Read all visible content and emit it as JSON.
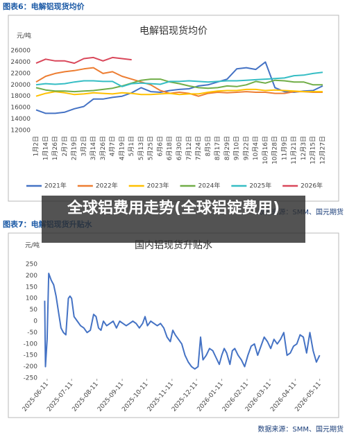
{
  "chart_data": [
    {
      "type": "line",
      "caption": "图表6：电解铝现货均价",
      "title": "电解铝现货均价",
      "y_unit": "元/吨",
      "source": "数据来源：SMM、国元期货",
      "categories": [
        "1月2日",
        "1月14日",
        "1月26日",
        "2月7日",
        "2月19日",
        "3月2日",
        "3月14日",
        "3月26日",
        "4月7日",
        "4月19日",
        "5月1日",
        "5月13日",
        "5月25日",
        "6月6日",
        "6月18日",
        "6月30日",
        "7月12日",
        "7月24日",
        "8月5日",
        "8月17日",
        "8月29日",
        "9月10日",
        "9月22日",
        "10月4日",
        "10月16日",
        "10月28日",
        "11月9日",
        "11月21日",
        "12月3日",
        "12月15日",
        "12月27日"
      ],
      "ylim": [
        12000,
        26000
      ],
      "yticks": [
        12000,
        14000,
        16000,
        18000,
        20000,
        22000,
        24000,
        26000
      ],
      "grid": false,
      "series": [
        {
          "name": "2021年",
          "color": "#4472c4",
          "values": [
            15600,
            15000,
            15000,
            15200,
            15800,
            16200,
            17500,
            17500,
            17800,
            18000,
            18600,
            19500,
            18800,
            18700,
            19000,
            19200,
            19300,
            19800,
            20000,
            20500,
            21000,
            22800,
            23000,
            22700,
            24000,
            19500,
            18800,
            18700,
            18900,
            19000,
            19800
          ]
        },
        {
          "name": "2022年",
          "color": "#ed7d31",
          "values": [
            20500,
            21500,
            22000,
            22300,
            22500,
            22800,
            23000,
            22000,
            22300,
            21500,
            21000,
            20500,
            20000,
            19000,
            18500,
            18700,
            18500,
            18000,
            18500,
            18700,
            18600,
            18700,
            18800,
            18700,
            18700,
            18500,
            18500,
            18800,
            18800,
            18700,
            18700
          ]
        },
        {
          "name": "2023年",
          "color": "#ffc000",
          "values": [
            18000,
            18500,
            18800,
            18600,
            18300,
            18400,
            18600,
            18500,
            18400,
            18600,
            18500,
            18300,
            18300,
            18400,
            18500,
            18300,
            18400,
            18400,
            18700,
            18900,
            19000,
            19000,
            19200,
            19200,
            19000,
            19100,
            19000,
            18900,
            18800,
            18800,
            18800
          ]
        },
        {
          "name": "2024年",
          "color": "#70ad47",
          "values": [
            19500,
            19100,
            18900,
            18900,
            18800,
            18900,
            19000,
            19200,
            19400,
            19800,
            20300,
            20800,
            21000,
            21000,
            20500,
            20200,
            19800,
            19500,
            19400,
            19500,
            19800,
            19700,
            20000,
            20600,
            20300,
            20800,
            20700,
            20500,
            20500,
            20000,
            20000
          ]
        },
        {
          "name": "2025年",
          "color": "#35bdc4",
          "values": [
            20000,
            20200,
            20100,
            20200,
            20500,
            20700,
            20700,
            20600,
            20600,
            19700,
            20200,
            20300,
            20200,
            20100,
            20600,
            20600,
            20700,
            20600,
            20500,
            20600,
            20700,
            20700,
            20800,
            20900,
            21000,
            21100,
            21200,
            21600,
            21700,
            22000,
            22200
          ]
        },
        {
          "name": "2026年",
          "color": "#d9475a",
          "values": [
            23800,
            24500,
            24200,
            24200,
            23800,
            24600,
            24800,
            24200,
            24800,
            24600,
            24400,
            null,
            null,
            null,
            null,
            null,
            null,
            null,
            null,
            null,
            null,
            null,
            null,
            null,
            null,
            null,
            null,
            null,
            null,
            null,
            null
          ]
        }
      ]
    },
    {
      "type": "line",
      "caption": "图表7：电解铝现货升贴水",
      "title": "国内铝现货升贴水",
      "y_unit": "元/吨",
      "source": "数据来源：SMM、国元期货",
      "x": [
        "2025-06-08",
        "2025-06-09",
        "2025-06-11",
        "2025-06-13",
        "2025-06-16",
        "2025-06-19",
        "2025-06-22",
        "2025-06-25",
        "2025-06-28",
        "2025-07-01",
        "2025-07-04",
        "2025-07-07",
        "2025-07-09",
        "2025-07-11",
        "2025-07-14",
        "2025-07-18",
        "2025-07-22",
        "2025-07-26",
        "2025-07-30",
        "2025-08-03",
        "2025-08-07",
        "2025-08-10",
        "2025-08-13",
        "2025-08-16",
        "2025-08-19",
        "2025-08-23",
        "2025-08-27",
        "2025-08-31",
        "2025-09-04",
        "2025-09-08",
        "2025-09-12",
        "2025-09-16",
        "2025-09-20",
        "2025-09-24",
        "2025-09-28",
        "2025-10-02",
        "2025-10-06",
        "2025-10-09",
        "2025-10-12",
        "2025-10-16",
        "2025-10-20",
        "2025-10-24",
        "2025-10-28",
        "2025-11-01",
        "2025-11-05",
        "2025-11-09",
        "2025-11-12",
        "2025-11-15",
        "2025-11-19",
        "2025-11-23",
        "2025-11-27",
        "2025-12-01",
        "2025-12-05",
        "2025-12-09",
        "2025-12-13",
        "2025-12-16",
        "2025-12-19",
        "2025-12-23",
        "2025-12-27",
        "2025-12-31",
        "2026-01-04",
        "2026-01-08",
        "2026-01-11",
        "2026-01-14",
        "2026-01-17",
        "2026-01-21",
        "2026-01-24",
        "2026-01-27",
        "2026-01-31",
        "2026-02-04",
        "2026-02-08",
        "2026-02-12",
        "2026-02-16",
        "2026-02-20",
        "2026-02-24",
        "2026-02-28",
        "2026-03-04",
        "2026-03-08",
        "2026-03-12",
        "2026-03-16",
        "2026-03-20",
        "2026-03-24",
        "2026-03-28",
        "2026-04-01",
        "2026-04-05",
        "2026-04-09",
        "2026-04-13",
        "2026-04-17",
        "2026-04-21",
        "2026-04-25",
        "2026-04-29",
        "2026-05-03",
        "2026-05-07",
        "2026-05-11"
      ],
      "values": [
        90,
        -200,
        -80,
        210,
        180,
        160,
        110,
        40,
        -30,
        -50,
        -60,
        100,
        110,
        100,
        20,
        0,
        -20,
        -30,
        -50,
        -40,
        30,
        20,
        -30,
        -40,
        0,
        -20,
        -10,
        0,
        -30,
        0,
        -10,
        -20,
        -10,
        0,
        -10,
        -30,
        -10,
        20,
        -20,
        0,
        -10,
        -20,
        -10,
        -30,
        -70,
        -90,
        -40,
        -60,
        -80,
        -100,
        -150,
        -180,
        -200,
        -210,
        -200,
        -70,
        -170,
        -150,
        -120,
        -130,
        -160,
        -190,
        -150,
        -120,
        -140,
        -190,
        -130,
        -120,
        -150,
        -170,
        -200,
        -150,
        -110,
        -100,
        -150,
        -110,
        -70,
        -90,
        -120,
        -80,
        -100,
        -80,
        -50,
        -150,
        -140,
        -110,
        -100,
        -60,
        -70,
        -140,
        -50,
        -130,
        -180,
        -150
      ],
      "color": "#4472c4",
      "xlim": [
        "2025-06-06",
        "2026-05-13"
      ],
      "xticks": [
        "2025-06-11",
        "2025-07-11",
        "2025-08-11",
        "2025-09-11",
        "2025-10-11",
        "2025-11-11",
        "2025-12-11",
        "2026-01-11",
        "2026-02-11",
        "2026-03-11",
        "2026-04-11",
        "2026-05-11"
      ],
      "ylim": [
        -250,
        250
      ],
      "yticks": [
        -250,
        -200,
        -150,
        -100,
        -50,
        0,
        50,
        100,
        150,
        200,
        250
      ],
      "grid": false
    }
  ],
  "overlay": {
    "text": "全球铝费用走势(全球铝锭费用)"
  }
}
